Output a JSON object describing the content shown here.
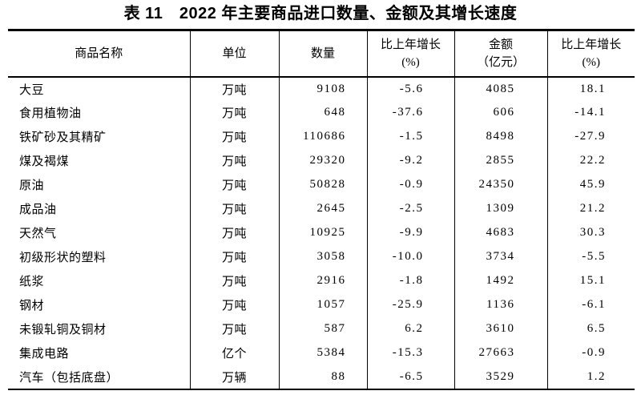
{
  "title": "表 11　2022 年主要商品进口数量、金额及其增长速度",
  "table": {
    "headers": [
      {
        "label": "商品名称",
        "sub": ""
      },
      {
        "label": "单位",
        "sub": ""
      },
      {
        "label": "数量",
        "sub": ""
      },
      {
        "label": "比上年增长",
        "sub": "(%)"
      },
      {
        "label": "金额",
        "sub": "（亿元）"
      },
      {
        "label": "比上年增长",
        "sub": "(%)"
      }
    ],
    "rows": [
      {
        "name": "大豆",
        "unit": "万吨",
        "quantity": "9108",
        "quantity_growth": "-5.6",
        "amount": "4085",
        "amount_growth": "18.1"
      },
      {
        "name": "食用植物油",
        "unit": "万吨",
        "quantity": "648",
        "quantity_growth": "-37.6",
        "amount": "606",
        "amount_growth": "-14.1"
      },
      {
        "name": "铁矿砂及其精矿",
        "unit": "万吨",
        "quantity": "110686",
        "quantity_growth": "-1.5",
        "amount": "8498",
        "amount_growth": "-27.9"
      },
      {
        "name": "煤及褐煤",
        "unit": "万吨",
        "quantity": "29320",
        "quantity_growth": "-9.2",
        "amount": "2855",
        "amount_growth": "22.2"
      },
      {
        "name": "原油",
        "unit": "万吨",
        "quantity": "50828",
        "quantity_growth": "-0.9",
        "amount": "24350",
        "amount_growth": "45.9"
      },
      {
        "name": "成品油",
        "unit": "万吨",
        "quantity": "2645",
        "quantity_growth": "-2.5",
        "amount": "1309",
        "amount_growth": "21.2"
      },
      {
        "name": "天然气",
        "unit": "万吨",
        "quantity": "10925",
        "quantity_growth": "-9.9",
        "amount": "4683",
        "amount_growth": "30.3"
      },
      {
        "name": "初级形状的塑料",
        "unit": "万吨",
        "quantity": "3058",
        "quantity_growth": "-10.0",
        "amount": "3734",
        "amount_growth": "-5.5"
      },
      {
        "name": "纸浆",
        "unit": "万吨",
        "quantity": "2916",
        "quantity_growth": "-1.8",
        "amount": "1492",
        "amount_growth": "15.1"
      },
      {
        "name": "钢材",
        "unit": "万吨",
        "quantity": "1057",
        "quantity_growth": "-25.9",
        "amount": "1136",
        "amount_growth": "-6.1"
      },
      {
        "name": "未锻轧铜及铜材",
        "unit": "万吨",
        "quantity": "587",
        "quantity_growth": "6.2",
        "amount": "3610",
        "amount_growth": "6.5"
      },
      {
        "name": "集成电路",
        "unit": "亿个",
        "quantity": "5384",
        "quantity_growth": "-15.3",
        "amount": "27663",
        "amount_growth": "-0.9"
      },
      {
        "name": "汽车（包括底盘）",
        "unit": "万辆",
        "quantity": "88",
        "quantity_growth": "-6.5",
        "amount": "3529",
        "amount_growth": "1.2"
      }
    ]
  }
}
